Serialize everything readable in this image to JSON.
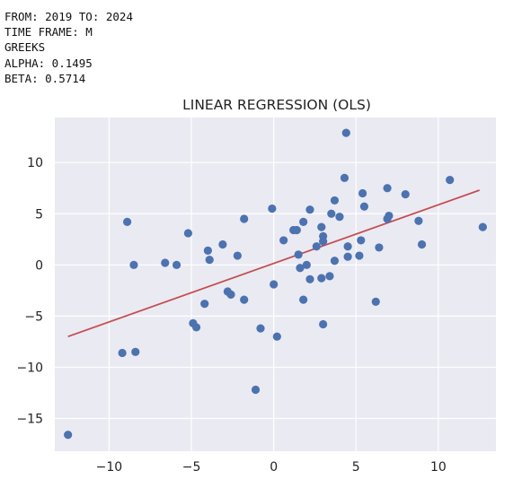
{
  "header": {
    "line1": "FROM: 2019 TO: 2024",
    "line2": "TIME FRAME: M",
    "line3": "GREEKS",
    "line4": "ALPHA: 0.1495",
    "line5": "BETA: 0.5714"
  },
  "colors": {
    "plot_background": "#eaeaf2",
    "grid": "#ffffff",
    "points": "#4c72b0",
    "regression_line": "#c44e52"
  },
  "chart_data": {
    "type": "scatter",
    "title": "LINEAR REGRESSION (OLS)",
    "xlabel": "",
    "ylabel": "",
    "xlim": [
      -13.3,
      13.5
    ],
    "ylim": [
      -18.2,
      14.4
    ],
    "xticks": [
      -10,
      -5,
      0,
      5,
      10
    ],
    "yticks": [
      -15,
      -10,
      -5,
      0,
      5,
      10
    ],
    "xtick_labels": [
      "−10",
      "−5",
      "0",
      "5",
      "10"
    ],
    "ytick_labels": [
      "−15",
      "−10",
      "−5",
      "0",
      "5",
      "10"
    ],
    "grid": true,
    "legend": false,
    "points": [
      [
        -12.5,
        -16.6
      ],
      [
        -9.2,
        -8.6
      ],
      [
        -8.4,
        -8.5
      ],
      [
        -8.9,
        4.2
      ],
      [
        -8.5,
        0.0
      ],
      [
        -6.6,
        0.2
      ],
      [
        -5.9,
        0.0
      ],
      [
        -5.2,
        3.1
      ],
      [
        -4.9,
        -5.7
      ],
      [
        -4.7,
        -6.1
      ],
      [
        -4.2,
        -3.8
      ],
      [
        -4.0,
        1.4
      ],
      [
        -3.9,
        0.5
      ],
      [
        -3.1,
        2.0
      ],
      [
        -2.8,
        -2.6
      ],
      [
        -2.6,
        -2.9
      ],
      [
        -2.2,
        0.9
      ],
      [
        -1.8,
        4.5
      ],
      [
        -1.8,
        -3.4
      ],
      [
        -1.1,
        -12.2
      ],
      [
        -0.8,
        -6.2
      ],
      [
        -0.1,
        5.5
      ],
      [
        0.0,
        -1.9
      ],
      [
        0.2,
        -7.0
      ],
      [
        0.6,
        2.4
      ],
      [
        1.2,
        3.4
      ],
      [
        1.4,
        3.4
      ],
      [
        1.5,
        1.0
      ],
      [
        1.6,
        -0.3
      ],
      [
        1.8,
        4.2
      ],
      [
        1.8,
        -3.4
      ],
      [
        2.0,
        0.0
      ],
      [
        2.2,
        5.4
      ],
      [
        2.2,
        -1.4
      ],
      [
        2.6,
        1.8
      ],
      [
        2.9,
        3.7
      ],
      [
        2.9,
        -1.3
      ],
      [
        3.0,
        2.3
      ],
      [
        3.0,
        2.8
      ],
      [
        3.0,
        -5.8
      ],
      [
        3.4,
        -1.1
      ],
      [
        3.5,
        5.0
      ],
      [
        3.7,
        0.4
      ],
      [
        3.7,
        6.3
      ],
      [
        4.0,
        4.7
      ],
      [
        4.3,
        8.5
      ],
      [
        4.4,
        12.9
      ],
      [
        4.5,
        0.8
      ],
      [
        4.5,
        1.8
      ],
      [
        5.2,
        0.9
      ],
      [
        5.3,
        2.4
      ],
      [
        5.4,
        7.0
      ],
      [
        5.5,
        5.7
      ],
      [
        6.2,
        -3.6
      ],
      [
        6.4,
        1.7
      ],
      [
        6.9,
        4.5
      ],
      [
        6.9,
        7.5
      ],
      [
        7.0,
        4.8
      ],
      [
        8.0,
        6.9
      ],
      [
        8.8,
        4.3
      ],
      [
        9.0,
        2.0
      ],
      [
        10.7,
        8.3
      ],
      [
        12.7,
        3.7
      ]
    ],
    "regression_line": [
      [
        -12.5,
        -7.0
      ],
      [
        12.5,
        7.3
      ]
    ]
  }
}
